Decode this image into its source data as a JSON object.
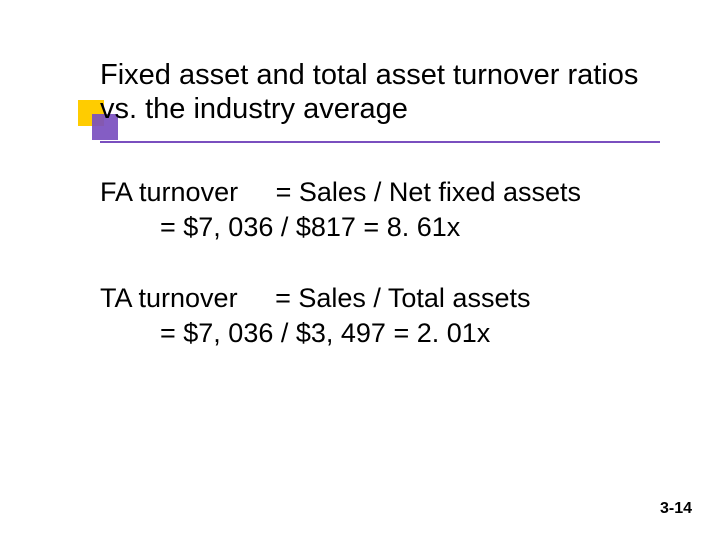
{
  "title": "Fixed asset and total asset turnover ratios vs. the industry average",
  "fa": {
    "label": "FA turnover",
    "formula": "= Sales / Net fixed assets",
    "calc": "= $7, 036 / $817 = 8. 61x"
  },
  "ta": {
    "label": "TA turnover",
    "formula": "= Sales / Total assets",
    "calc": "= $7, 036 / $3, 497 = 2. 01x"
  },
  "page_number": "3-14",
  "colors": {
    "accent_yellow": "#ffcc00",
    "accent_purple": "#7a4fbf",
    "text": "#000000",
    "background": "#ffffff"
  },
  "fonts": {
    "title_size_pt": 29,
    "body_size_pt": 27,
    "pagenum_size_pt": 16,
    "family": "Verdana"
  }
}
